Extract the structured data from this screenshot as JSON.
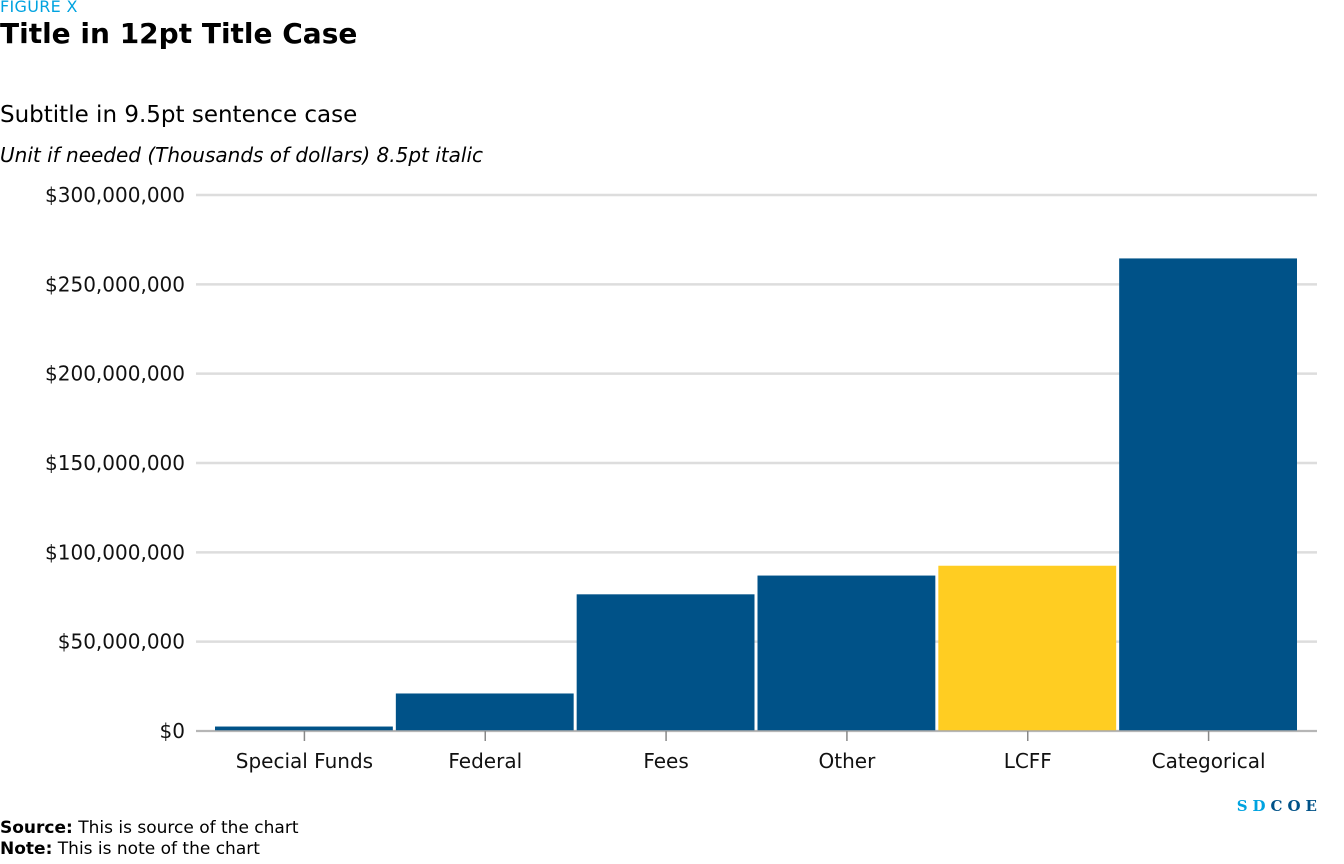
{
  "header": {
    "figure_label": "FIGURE X",
    "title": "Title in 12pt Title Case",
    "subtitle": "Subtitle in 9.5pt sentence case",
    "unit": "Unit if needed (Thousands of dollars) 8.5pt italic"
  },
  "chart_data": {
    "type": "bar",
    "categories": [
      "Special Funds",
      "Federal",
      "Fees",
      "Other",
      "LCFF",
      "Categorical"
    ],
    "values": [
      2500000,
      21000000,
      76500000,
      87000000,
      92500000,
      264500000
    ],
    "highlight_category": "LCFF",
    "ylim": [
      0,
      300000000
    ],
    "yticks": [
      0,
      50000000,
      100000000,
      150000000,
      200000000,
      250000000,
      300000000
    ],
    "ytick_labels": [
      "$0",
      "$50,000,000",
      "$100,000,000",
      "$150,000,000",
      "$200,000,000",
      "$250,000,000",
      "$300,000,000"
    ],
    "grid": true,
    "colors": {
      "bar": "#005288",
      "highlight": "#FFCD22",
      "grid": "#dddddd"
    }
  },
  "footer": {
    "source_label": "Source:",
    "source_text": " This is source of the chart",
    "note_label": "Note:",
    "note_text": " This is note of the chart"
  },
  "logo": {
    "part1": "SD",
    "part2": "COE"
  }
}
